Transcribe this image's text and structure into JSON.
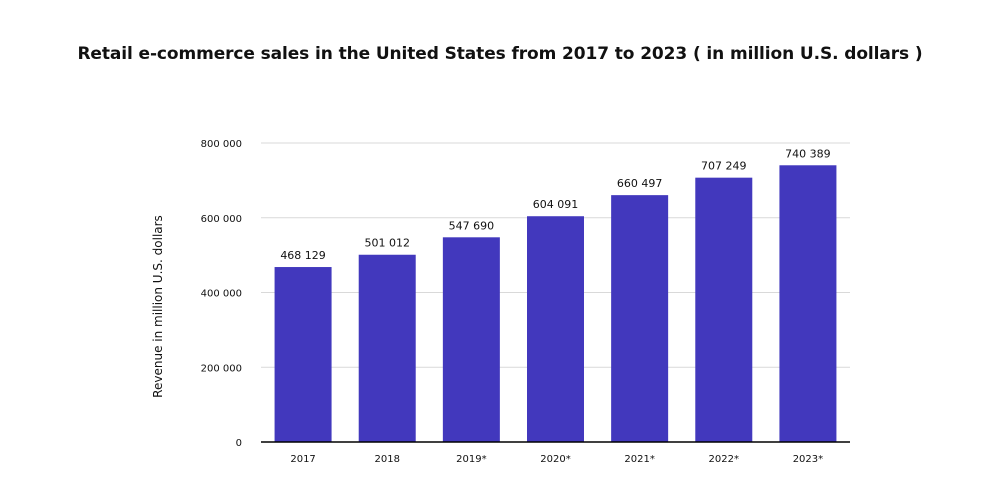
{
  "chart_data": {
    "type": "bar",
    "title": "Retail e-commerce sales in the United States from 2017 to 2023 ( in million U.S. dollars )",
    "xlabel": "",
    "ylabel": "Revenue in million U.S. dollars",
    "categories": [
      "2017",
      "2018",
      "2019*",
      "2020*",
      "2021*",
      "2022*",
      "2023*"
    ],
    "values": [
      468129,
      501012,
      547690,
      604091,
      660497,
      707249,
      740389
    ],
    "data_labels": [
      "468 129",
      "501 012",
      "547 690",
      "604 091",
      "660 497",
      "707 249",
      "740 389"
    ],
    "yticks": [
      0,
      200000,
      400000,
      600000,
      800000
    ],
    "ytick_labels": [
      "0",
      "200 000",
      "400 000",
      "600 000",
      "800 000"
    ],
    "ylim": [
      0,
      800000
    ],
    "grid": true,
    "legend": "none",
    "bar_color": "#4238bd",
    "grid_color": "#d9d9d9",
    "axis_color": "#000000"
  }
}
